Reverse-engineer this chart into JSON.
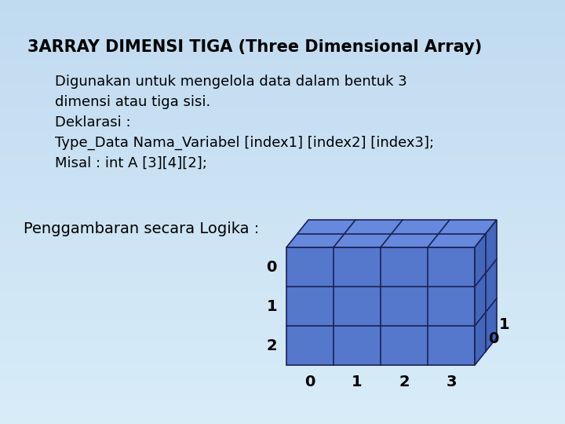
{
  "title_num": "3.",
  "title_text": "  ARRAY DIMENSI TIGA (Three Dimensional Array)",
  "body_lines": [
    "Digunakan untuk mengelola data dalam bentuk 3",
    "dimensi atau tiga sisi.",
    "Deklarasi :",
    "Type_Data Nama_Variabel [index1] [index2] [index3];",
    "Misal : int A [3][4][2];"
  ],
  "logika_label": "Penggambaran secara Logika :",
  "bg_color_top": "#cce4f5",
  "bg_color_bottom": "#ddeeff",
  "cube_face_color": "#5577cc",
  "cube_face_color_top": "#6688dd",
  "cube_face_color_side": "#4466bb",
  "cube_edge_color": "#1a2255",
  "nx": 4,
  "ny": 3,
  "nz": 2,
  "x_labels": [
    "0",
    "1",
    "2",
    "3"
  ],
  "y_labels": [
    "0",
    "1",
    "2"
  ],
  "z_labels": [
    "0",
    "1"
  ],
  "title_fontsize": 15,
  "body_fontsize": 13,
  "label_fontsize": 14
}
